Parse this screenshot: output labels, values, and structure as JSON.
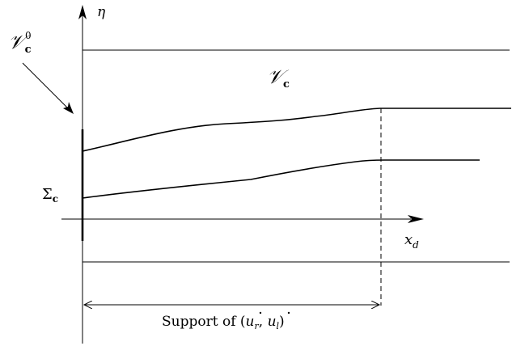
{
  "labels": {
    "eta": "η",
    "xd_main": "x",
    "xd_sub": "d",
    "v_c_script": "𝒱",
    "v_c_bold": "c",
    "v_c0_script": "𝒱",
    "v_c0_sup": "0",
    "v_c0_sub": "c",
    "sigma_main": "Σ",
    "sigma_sub": "c",
    "support_prefix": "Support of (",
    "u_r": "u",
    "r_sub": "r",
    "comma": ", ",
    "u_l": "u",
    "l_sub": "l",
    "support_suffix": ")"
  },
  "colors": {
    "stroke": "#000000",
    "background": "#ffffff"
  }
}
